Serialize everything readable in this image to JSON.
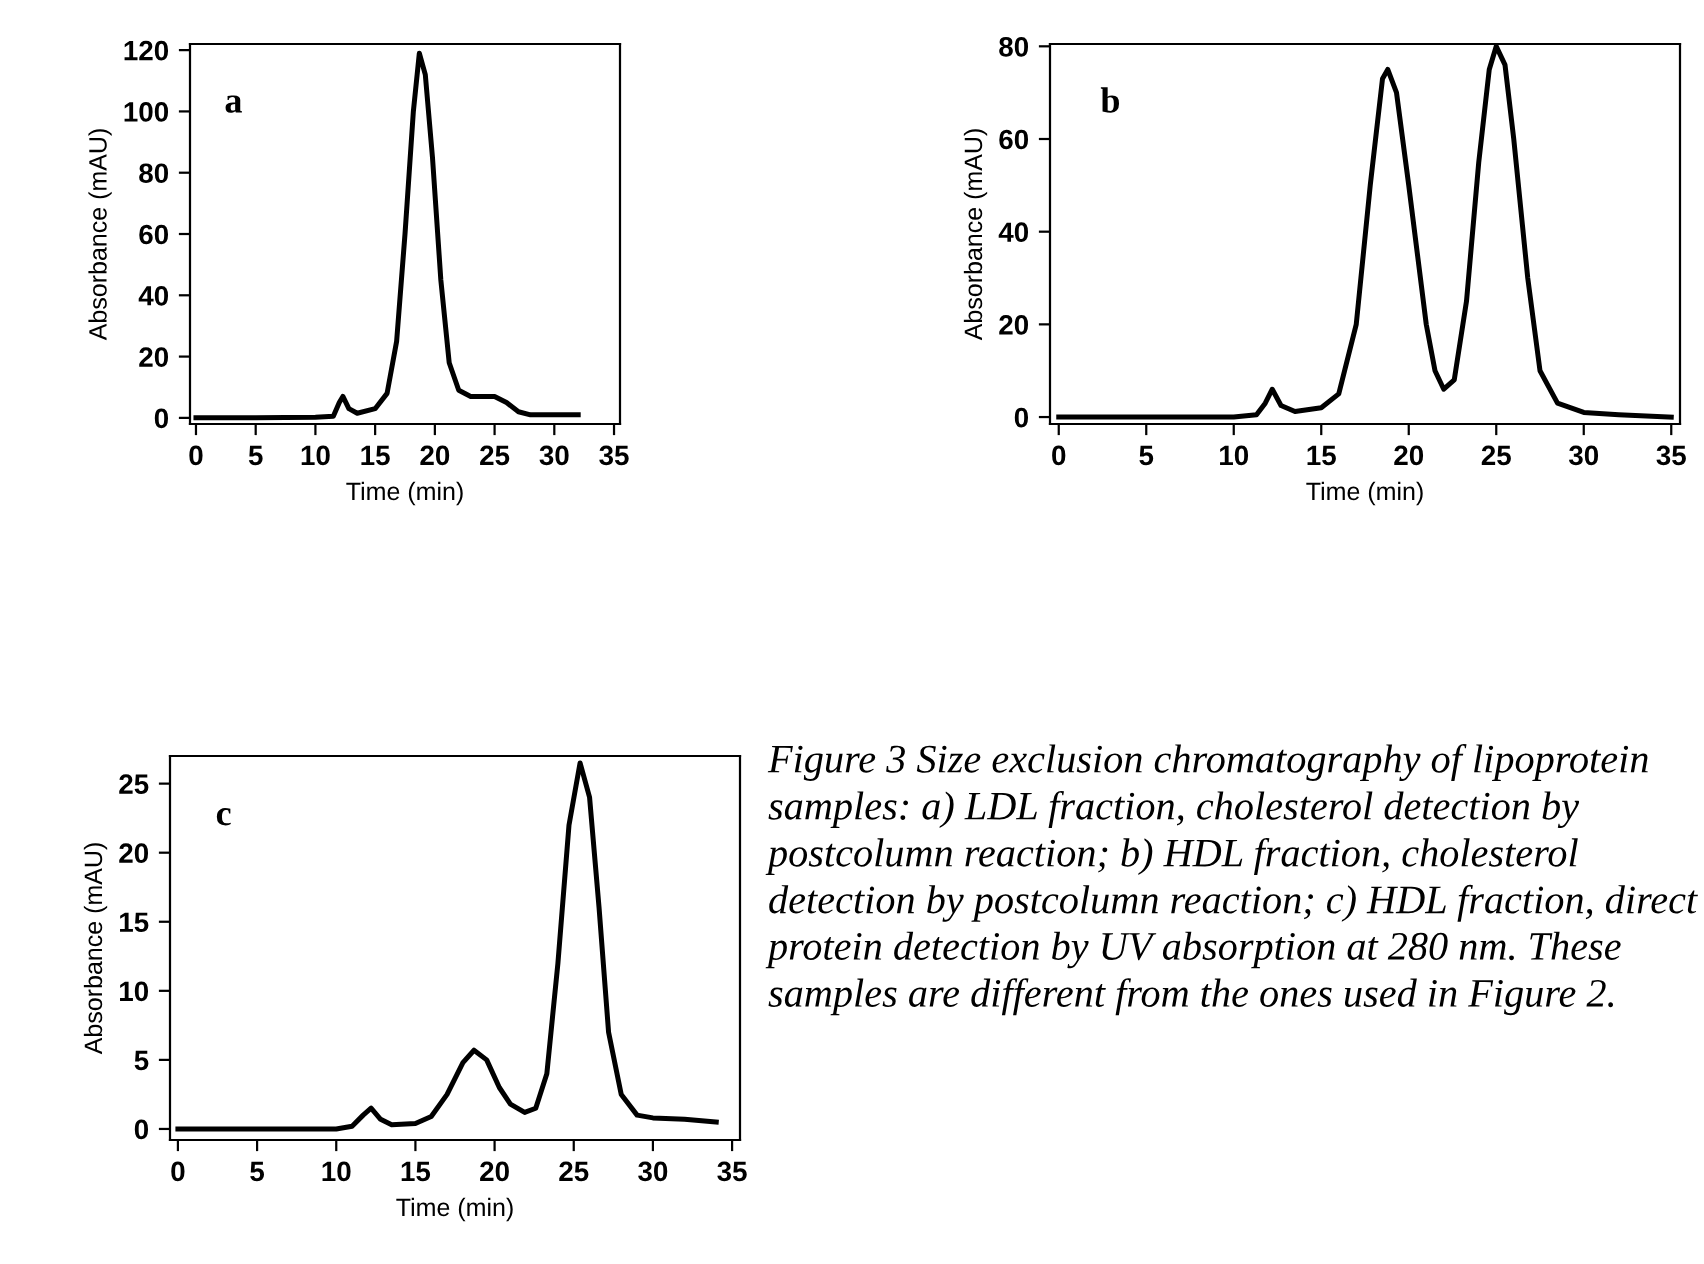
{
  "chart_data": [
    {
      "type": "line",
      "xlabel": "Time (min)",
      "ylabel": "Absorbance (mAU)",
      "annotations": [
        "a"
      ],
      "xlim": [
        -0.5,
        35.5
      ],
      "ylim": [
        -2,
        122
      ],
      "xticks": [
        0,
        5,
        10,
        15,
        20,
        25,
        30,
        35
      ],
      "yticks": [
        0,
        20,
        40,
        60,
        80,
        100,
        120
      ],
      "grid": false,
      "legend": false,
      "marker": "none",
      "line_style": "solid",
      "series": [
        {
          "color": "#000000",
          "x": [
            0,
            5,
            10,
            11.5,
            12,
            12.3,
            12.8,
            13.5,
            15,
            16,
            16.8,
            17.5,
            18.2,
            18.7,
            19.2,
            19.8,
            20.5,
            21.2,
            22,
            23,
            24,
            25,
            26,
            27,
            28,
            32
          ],
          "values": [
            0,
            0,
            0.2,
            0.5,
            5,
            7,
            3,
            1.5,
            3,
            8,
            25,
            60,
            100,
            119,
            112,
            85,
            45,
            18,
            9,
            7,
            7,
            7,
            5,
            2,
            1,
            1
          ]
        }
      ]
    },
    {
      "type": "line",
      "xlabel": "Time (min)",
      "ylabel": "Absorbance (mAU)",
      "annotations": [
        "b"
      ],
      "xlim": [
        -0.5,
        35.5
      ],
      "ylim": [
        -1.5,
        80.5
      ],
      "xticks": [
        0,
        5,
        10,
        15,
        20,
        25,
        30,
        35
      ],
      "yticks": [
        0,
        20,
        40,
        60,
        80
      ],
      "grid": false,
      "legend": false,
      "marker": "none",
      "line_style": "solid",
      "series": [
        {
          "color": "#000000",
          "x": [
            0,
            10,
            11.3,
            11.8,
            12.2,
            12.7,
            13.5,
            15,
            16,
            17,
            17.8,
            18.5,
            18.8,
            19.3,
            20,
            21,
            21.5,
            22,
            22.6,
            23.3,
            24,
            24.6,
            25,
            25.5,
            26,
            26.8,
            27.5,
            28.5,
            30,
            32,
            35
          ],
          "values": [
            0,
            0,
            0.5,
            3,
            6,
            2.5,
            1.2,
            2,
            5,
            20,
            50,
            73,
            75,
            70,
            50,
            20,
            10,
            6,
            8,
            25,
            55,
            75,
            80,
            76,
            60,
            30,
            10,
            3,
            1,
            0.5,
            0
          ]
        }
      ]
    },
    {
      "type": "line",
      "xlabel": "Time (min)",
      "ylabel": "Absorbance (mAU)",
      "annotations": [
        "c",
        "Figure 3 Size exclusion chromatography of lipoprotein samples: a) LDL fraction, cholesterol detection by postcolumn reaction; b) HDL fraction, cholesterol detection by postcolumn reaction; c) HDL fraction, direct protein detection by UV absorption at 280 nm. These samples are different from the ones used in Figure 2."
      ],
      "xlim": [
        -0.5,
        35.5
      ],
      "ylim": [
        -0.8,
        27
      ],
      "xticks": [
        0,
        5,
        10,
        15,
        20,
        25,
        30,
        35
      ],
      "yticks": [
        0,
        5,
        10,
        15,
        20,
        25
      ],
      "grid": false,
      "legend": false,
      "marker": "none",
      "line_style": "solid",
      "series": [
        {
          "color": "#000000",
          "x": [
            0,
            10,
            11,
            11.7,
            12.2,
            12.8,
            13.5,
            15,
            16,
            17,
            18,
            18.7,
            19.5,
            20.3,
            21,
            21.9,
            22.6,
            23.3,
            24,
            24.7,
            25.4,
            26,
            26.6,
            27.2,
            28,
            29,
            30,
            32,
            34
          ],
          "values": [
            0,
            0,
            0.2,
            1,
            1.5,
            0.7,
            0.3,
            0.4,
            0.9,
            2.5,
            4.8,
            5.7,
            5,
            3,
            1.8,
            1.2,
            1.5,
            4,
            12,
            22,
            26.5,
            24,
            16,
            7,
            2.5,
            1,
            0.8,
            0.7,
            0.5
          ]
        }
      ]
    }
  ]
}
